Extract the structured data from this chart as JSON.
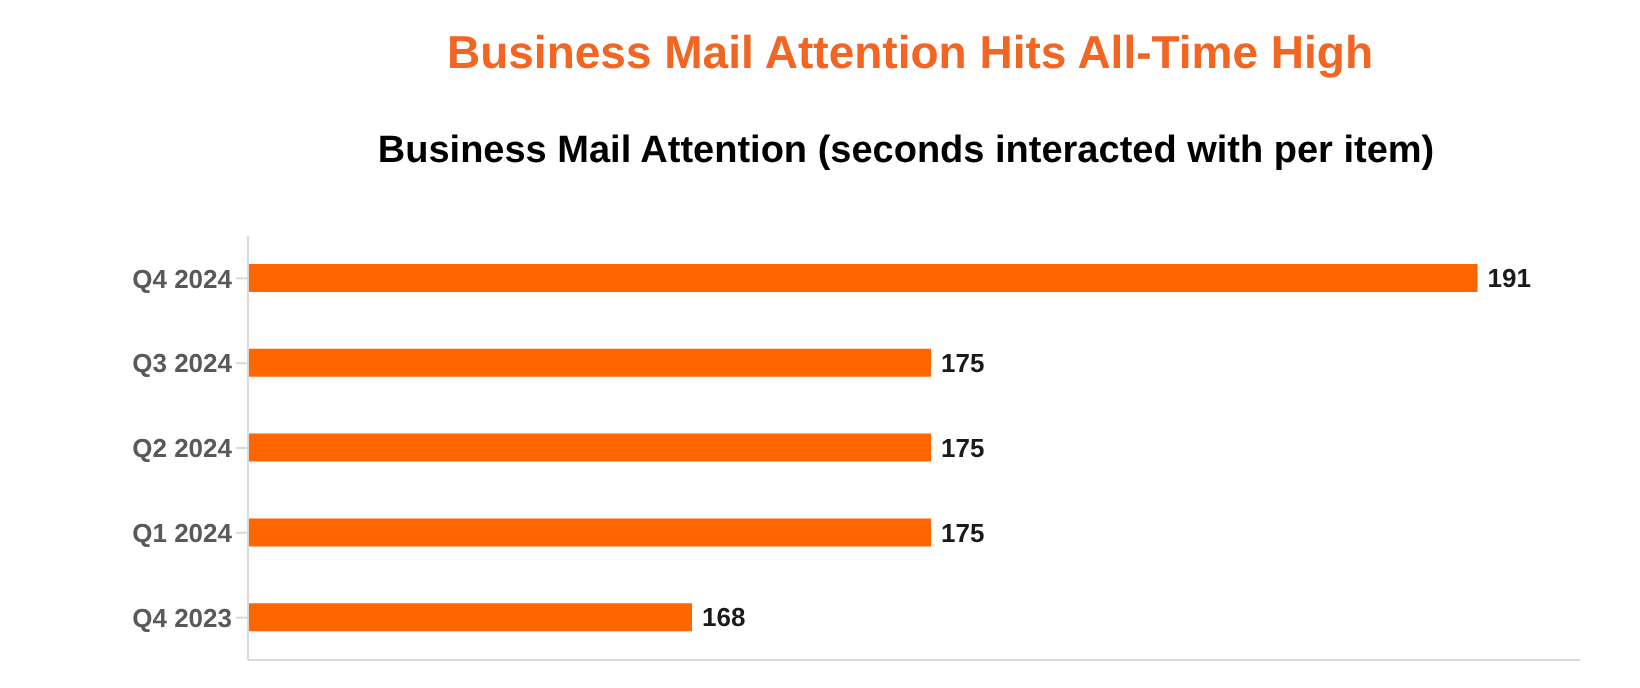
{
  "chart_data": {
    "type": "bar",
    "orientation": "horizontal",
    "title": "Business Mail Attention Hits All-Time High",
    "subtitle": "Business Mail Attention (seconds interacted with per item)",
    "categories": [
      "Q4 2024",
      "Q3 2024",
      "Q2 2024",
      "Q1 2024",
      "Q4 2023"
    ],
    "values": [
      191,
      175,
      175,
      175,
      168
    ],
    "color": "#ff6600",
    "xlim": [
      155,
      194
    ],
    "data_labels": true,
    "tick_labels": "y"
  }
}
